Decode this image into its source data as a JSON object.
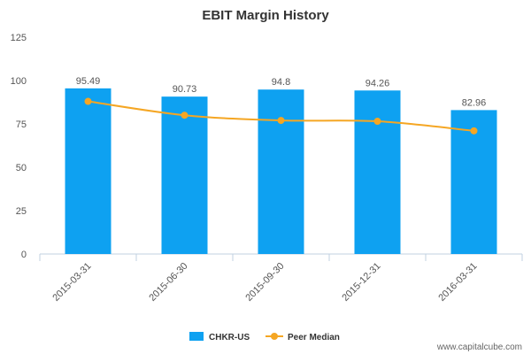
{
  "chart_data": {
    "type": "bar",
    "title": "EBIT Margin History",
    "categories": [
      "2015-03-31",
      "2015-06-30",
      "2015-09-30",
      "2015-12-31",
      "2016-03-31"
    ],
    "series": [
      {
        "name": "CHKR-US",
        "type": "bar",
        "color": "#0ea1f1",
        "values": [
          95.49,
          90.73,
          94.8,
          94.26,
          82.96
        ],
        "data_labels": [
          "95.49",
          "90.73",
          "94.8",
          "94.26",
          "82.96"
        ]
      },
      {
        "name": "Peer Median",
        "type": "line",
        "color": "#f5a623",
        "values": [
          88,
          80,
          77,
          76.5,
          71
        ]
      }
    ],
    "ylim": [
      0,
      125
    ],
    "yticks": [
      "0",
      "25",
      "50",
      "75",
      "100",
      "125"
    ],
    "xlabel": "",
    "ylabel": "",
    "grid": false,
    "legend_position": "bottom-center"
  },
  "watermark": "www.capitalcube.com"
}
